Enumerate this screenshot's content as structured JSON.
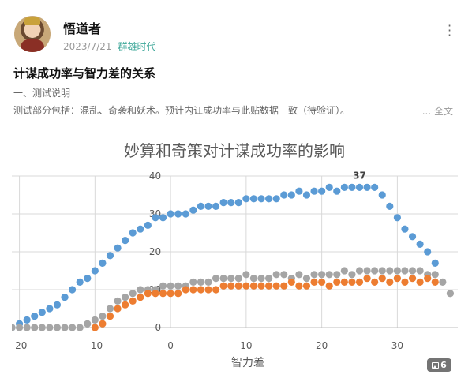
{
  "post": {
    "author": "悟道者",
    "date": "2023/7/21",
    "topic": "群雄时代",
    "title": "计谋成功率与智力差的关系",
    "line1": "一、测试说明",
    "line2": "测试部分包括：混乱、奇袭和妖术。预计内讧成功率与此贴数据一致（待验证）。",
    "full_text_label": "... 全文",
    "more_icon": "more-vertical-icon",
    "image_count": "6",
    "image_count_icon": "image-icon"
  },
  "colors": {
    "topic": "#3fa89a",
    "blue_series": "#5b9bd5",
    "orange_series": "#ed7d31",
    "gray_series": "#a5a5a5"
  },
  "chart_data": {
    "type": "scatter",
    "title": "妙算和奇策对计谋成功率的影响",
    "xlabel": "智力差",
    "ylabel": "",
    "xlim": [
      -21,
      38
    ],
    "ylim": [
      0,
      40
    ],
    "x_ticks": [
      -20,
      -10,
      0,
      10,
      20,
      30
    ],
    "y_ticks": [
      0,
      10,
      20,
      30,
      40
    ],
    "grid": true,
    "annotations": [
      {
        "x": 25,
        "y": 37,
        "text": "37"
      }
    ],
    "x": [
      -21,
      -20,
      -19,
      -18,
      -17,
      -16,
      -15,
      -14,
      -13,
      -12,
      -11,
      -10,
      -9,
      -8,
      -7,
      -6,
      -5,
      -4,
      -3,
      -2,
      -1,
      0,
      1,
      2,
      3,
      4,
      5,
      6,
      7,
      8,
      9,
      10,
      11,
      12,
      13,
      14,
      15,
      16,
      17,
      18,
      19,
      20,
      21,
      22,
      23,
      24,
      25,
      26,
      27,
      28,
      29,
      30,
      31,
      32,
      33,
      34,
      35,
      36,
      37
    ],
    "series": [
      {
        "color": "#5b9bd5",
        "values": [
          0,
          1,
          2,
          3,
          4,
          5,
          6,
          8,
          10,
          12,
          13,
          15,
          17,
          19,
          21,
          23,
          25,
          26,
          27,
          29,
          29,
          30,
          30,
          30,
          31,
          32,
          32,
          32,
          33,
          33,
          33,
          34,
          34,
          34,
          34,
          34,
          35,
          35,
          36,
          35,
          36,
          36,
          37,
          36,
          37,
          37,
          37,
          37,
          37,
          35,
          32,
          29,
          26,
          24,
          22,
          20,
          17,
          null,
          null
        ]
      },
      {
        "color": "#ed7d31",
        "values": [
          null,
          null,
          null,
          null,
          null,
          null,
          null,
          null,
          null,
          null,
          null,
          0,
          1,
          3,
          5,
          6,
          7,
          8,
          9,
          9,
          9,
          9,
          9,
          10,
          10,
          10,
          10,
          10,
          11,
          11,
          11,
          11,
          11,
          11,
          11,
          11,
          11,
          12,
          11,
          11,
          12,
          12,
          11,
          12,
          12,
          12,
          12,
          13,
          12,
          13,
          12,
          13,
          12,
          13,
          12,
          13,
          12,
          null,
          null
        ]
      },
      {
        "color": "#a5a5a5",
        "values": [
          0,
          0,
          0,
          0,
          0,
          0,
          0,
          0,
          0,
          0,
          1,
          2,
          3,
          5,
          7,
          8,
          9,
          10,
          10,
          10,
          11,
          11,
          11,
          11,
          12,
          12,
          12,
          13,
          13,
          13,
          13,
          14,
          13,
          13,
          13,
          14,
          14,
          13,
          14,
          13,
          14,
          14,
          14,
          14,
          15,
          14,
          15,
          15,
          15,
          15,
          15,
          15,
          15,
          15,
          15,
          14,
          14,
          12,
          9
        ]
      }
    ]
  }
}
